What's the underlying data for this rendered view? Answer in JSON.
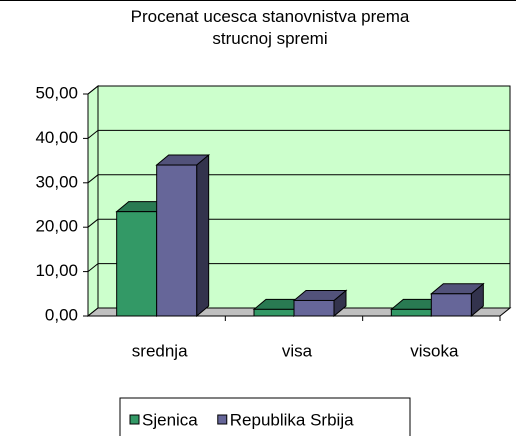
{
  "chart_data": {
    "type": "bar3d",
    "title": "Procenat ucesca stanovnistva prema strucnoj spremi",
    "categories": [
      "srednja",
      "visa",
      "visoka"
    ],
    "series": [
      {
        "name": "Sjenica",
        "color": "#339966",
        "values": [
          23.5,
          1.5,
          1.5
        ]
      },
      {
        "name": "Republika Srbija",
        "color": "#666699",
        "values": [
          34,
          3.5,
          5
        ]
      }
    ],
    "ylim": [
      0,
      50
    ],
    "yticks": [
      {
        "value": 0,
        "label": "0,00"
      },
      {
        "value": 10,
        "label": "10,00"
      },
      {
        "value": 20,
        "label": "20,00"
      },
      {
        "value": 30,
        "label": "30,00"
      },
      {
        "value": 40,
        "label": "40,00"
      },
      {
        "value": 50,
        "label": "50,00"
      }
    ],
    "grid": true,
    "legend": "bottom"
  }
}
